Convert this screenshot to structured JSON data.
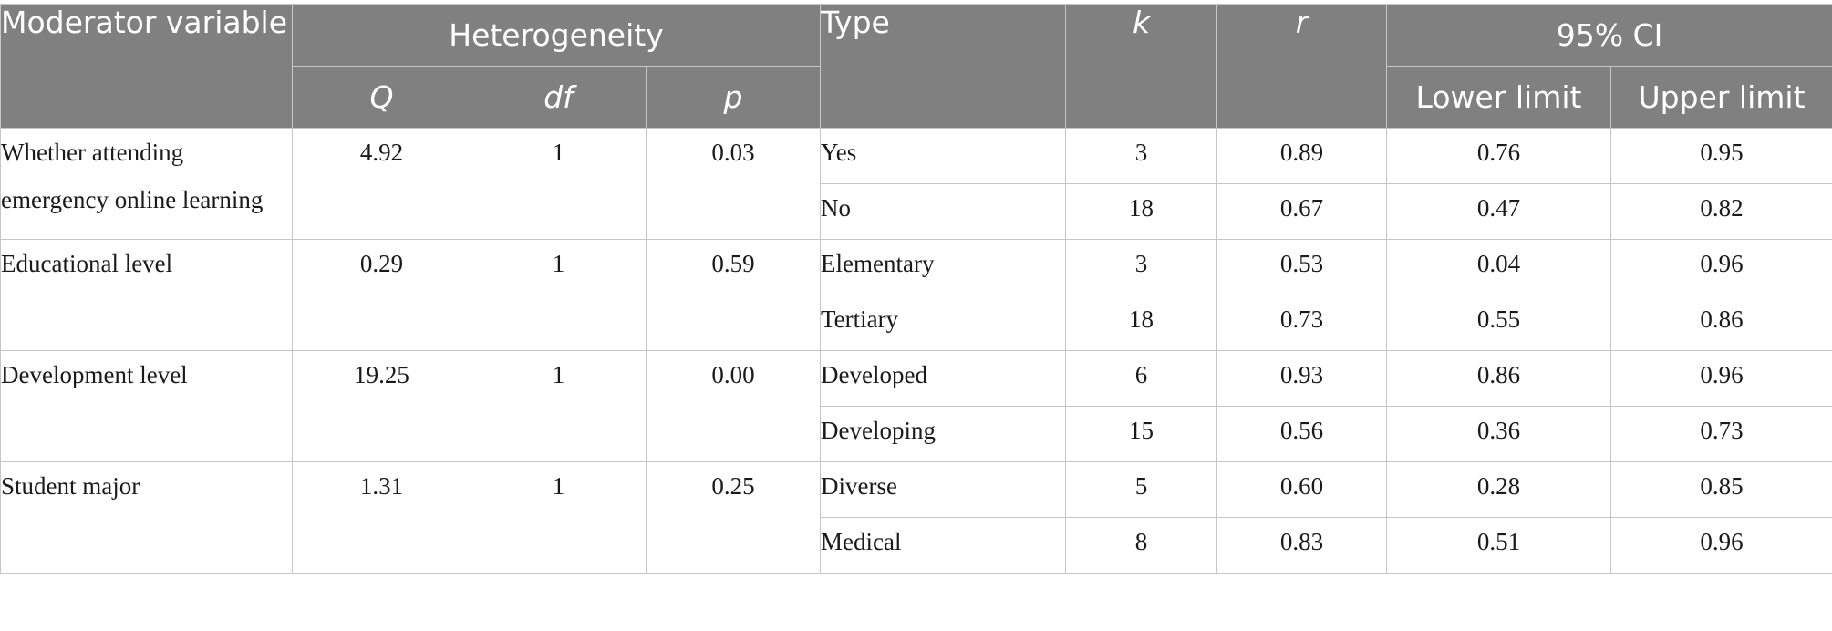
{
  "headers": {
    "moderator": "Moderator variable",
    "heterogeneity": "Heterogeneity",
    "q": "Q",
    "df": "df",
    "p": "p",
    "type": "Type",
    "k": "k",
    "r": "r",
    "ci": "95% CI",
    "lower": "Lower limit",
    "upper": "Upper limit"
  },
  "groups": [
    {
      "variable": "Whether attending emergency online learning",
      "q": "4.92",
      "df": "1",
      "p": "0.03",
      "rows": [
        {
          "type": "Yes",
          "k": "3",
          "r": "0.89",
          "lower": "0.76",
          "upper": "0.95"
        },
        {
          "type": "No",
          "k": "18",
          "r": "0.67",
          "lower": "0.47",
          "upper": "0.82"
        }
      ]
    },
    {
      "variable": "Educational level",
      "q": "0.29",
      "df": "1",
      "p": "0.59",
      "rows": [
        {
          "type": "Elementary",
          "k": "3",
          "r": "0.53",
          "lower": "0.04",
          "upper": "0.96"
        },
        {
          "type": "Tertiary",
          "k": "18",
          "r": "0.73",
          "lower": "0.55",
          "upper": "0.86"
        }
      ]
    },
    {
      "variable": "Development level",
      "q": "19.25",
      "df": "1",
      "p": "0.00",
      "rows": [
        {
          "type": "Developed",
          "k": "6",
          "r": "0.93",
          "lower": "0.86",
          "upper": "0.96"
        },
        {
          "type": "Developing",
          "k": "15",
          "r": "0.56",
          "lower": "0.36",
          "upper": "0.73"
        }
      ]
    },
    {
      "variable": "Student major",
      "q": "1.31",
      "df": "1",
      "p": "0.25",
      "rows": [
        {
          "type": "Diverse",
          "k": "5",
          "r": "0.60",
          "lower": "0.28",
          "upper": "0.85"
        },
        {
          "type": "Medical",
          "k": "8",
          "r": "0.83",
          "lower": "0.51",
          "upper": "0.96"
        }
      ]
    }
  ]
}
